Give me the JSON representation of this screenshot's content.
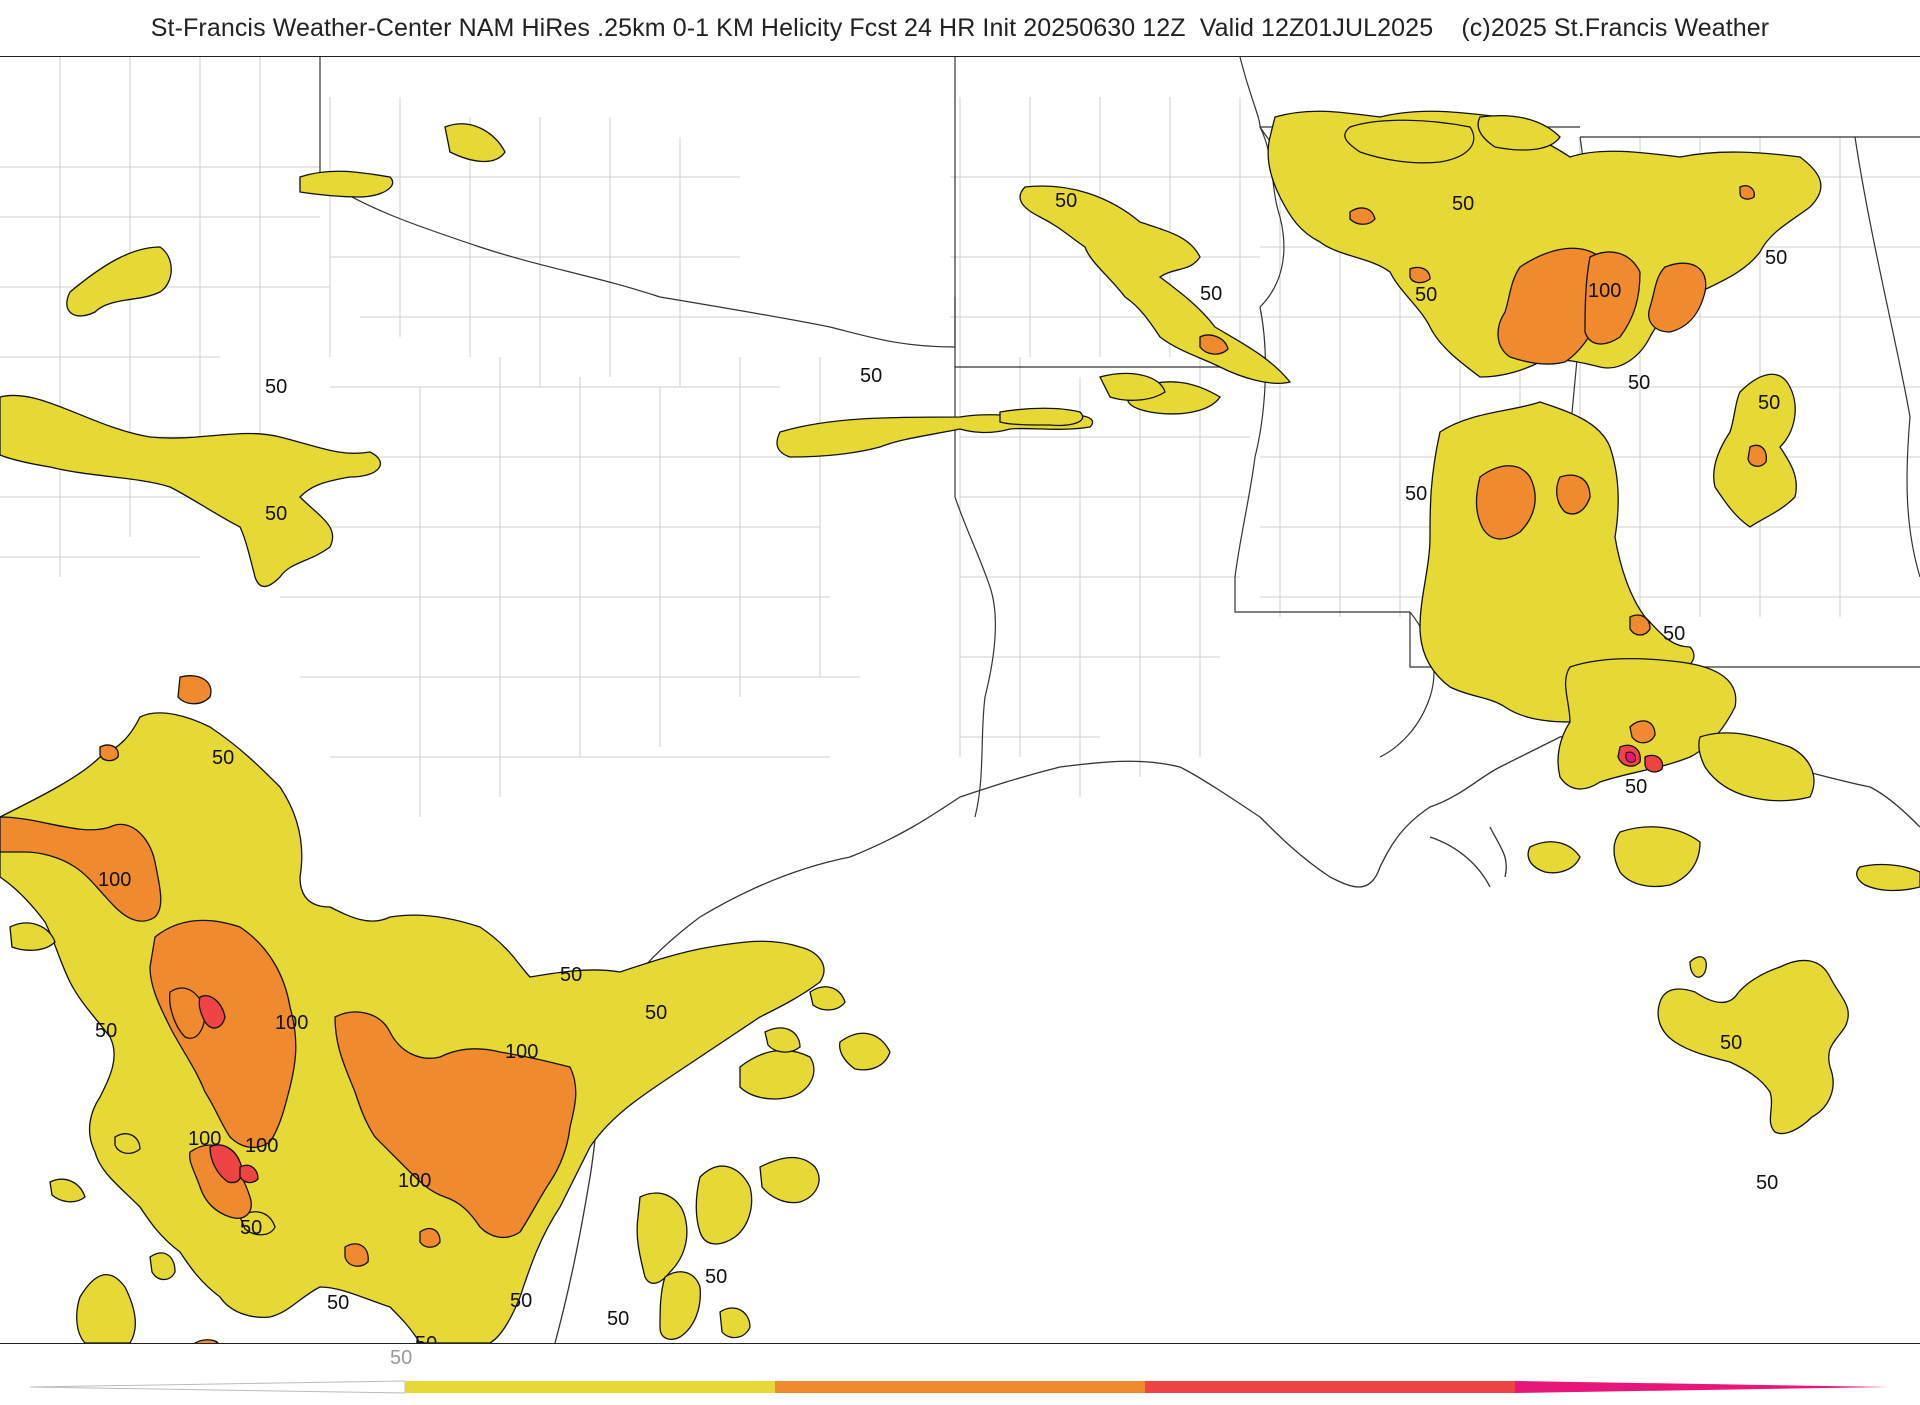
{
  "title": "St-Francis Weather-Center NAM HiRes .25km 0-1 KM Helicity Fcst 24 HR Init 20250630 12Z  Valid 12Z01JUL2025    (c)2025 St.Francis Weather",
  "contour_labels": {
    "l50": "50",
    "l100": "100"
  },
  "colorbar": {
    "tick_label": "50",
    "colors": [
      "#e6d936",
      "#f08a2e",
      "#ee4444",
      "#e8157a"
    ]
  },
  "colors": {
    "level_50": "#e6d936",
    "level_100": "#f08a2e",
    "level_150": "#ee4444",
    "level_200": "#e8157a",
    "border": "#333333",
    "county": "#cccccc"
  }
}
